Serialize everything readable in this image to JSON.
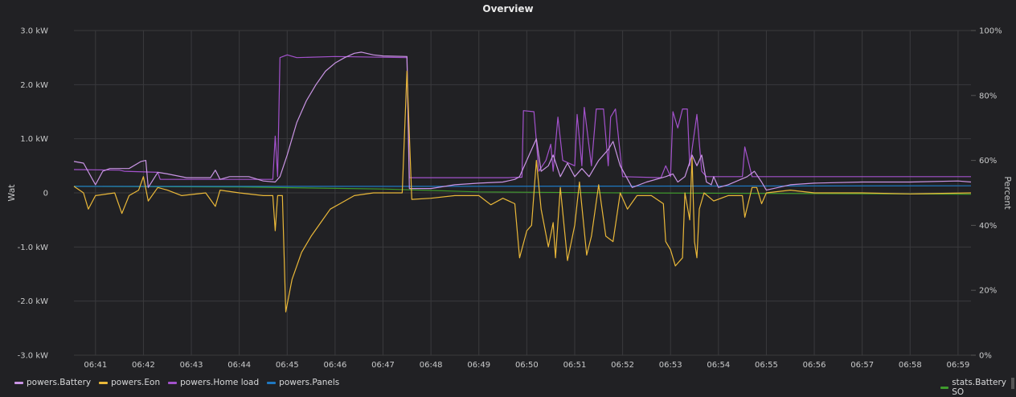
{
  "chart_data": {
    "type": "line",
    "title": "Overview",
    "xlabel": "",
    "ylabel": "Wat",
    "y2label": "Percent",
    "xlim": [
      40.55,
      59.27
    ],
    "ylim": [
      -3,
      3
    ],
    "y2lim": [
      0,
      100
    ],
    "grid": true,
    "legend_placement": "bottom",
    "x_ticks": [
      {
        "v": 41,
        "label": "06:41"
      },
      {
        "v": 42,
        "label": "06:42"
      },
      {
        "v": 43,
        "label": "06:43"
      },
      {
        "v": 44,
        "label": "06:44"
      },
      {
        "v": 45,
        "label": "06:45"
      },
      {
        "v": 46,
        "label": "06:46"
      },
      {
        "v": 47,
        "label": "06:47"
      },
      {
        "v": 48,
        "label": "06:48"
      },
      {
        "v": 49,
        "label": "06:49"
      },
      {
        "v": 50,
        "label": "06:50"
      },
      {
        "v": 51,
        "label": "06:51"
      },
      {
        "v": 52,
        "label": "06:52"
      },
      {
        "v": 53,
        "label": "06:53"
      },
      {
        "v": 54,
        "label": "06:54"
      },
      {
        "v": 55,
        "label": "06:55"
      },
      {
        "v": 56,
        "label": "06:56"
      },
      {
        "v": 57,
        "label": "06:57"
      },
      {
        "v": 58,
        "label": "06:58"
      },
      {
        "v": 59,
        "label": "06:59"
      }
    ],
    "y_ticks": [
      {
        "v": 3,
        "label": "3.0 kW"
      },
      {
        "v": 2,
        "label": "2.0 kW"
      },
      {
        "v": 1,
        "label": "1.0 kW"
      },
      {
        "v": 0,
        "label": "0"
      },
      {
        "v": -1,
        "label": "-1.0 kW"
      },
      {
        "v": -2,
        "label": "-2.0 kW"
      },
      {
        "v": -3,
        "label": "-3.0 kW"
      }
    ],
    "y2_ticks": [
      {
        "v": 100,
        "label": "100%"
      },
      {
        "v": 80,
        "label": "80%"
      },
      {
        "v": 60,
        "label": "60%"
      },
      {
        "v": 40,
        "label": "40%"
      },
      {
        "v": 20,
        "label": "20%"
      },
      {
        "v": 0,
        "label": "0%"
      }
    ],
    "x_unit": "minutes past 06:00",
    "series": [
      {
        "name": "powers.Battery",
        "color": "#ca95e5",
        "axis": "left",
        "points": [
          [
            40.55,
            0.58
          ],
          [
            40.75,
            0.55
          ],
          [
            41.0,
            0.15
          ],
          [
            41.15,
            0.4
          ],
          [
            41.3,
            0.45
          ],
          [
            41.7,
            0.45
          ],
          [
            41.95,
            0.58
          ],
          [
            42.05,
            0.6
          ],
          [
            42.1,
            0.1
          ],
          [
            42.3,
            0.38
          ],
          [
            42.5,
            0.35
          ],
          [
            42.9,
            0.28
          ],
          [
            43.4,
            0.28
          ],
          [
            43.5,
            0.42
          ],
          [
            43.6,
            0.25
          ],
          [
            43.8,
            0.3
          ],
          [
            44.2,
            0.3
          ],
          [
            44.5,
            0.22
          ],
          [
            44.75,
            0.2
          ],
          [
            44.85,
            0.3
          ],
          [
            45.0,
            0.7
          ],
          [
            45.2,
            1.3
          ],
          [
            45.4,
            1.7
          ],
          [
            45.6,
            2.0
          ],
          [
            45.8,
            2.25
          ],
          [
            46.0,
            2.4
          ],
          [
            46.2,
            2.5
          ],
          [
            46.4,
            2.58
          ],
          [
            46.55,
            2.6
          ],
          [
            46.8,
            2.55
          ],
          [
            47.0,
            2.53
          ],
          [
            47.5,
            2.52
          ],
          [
            47.55,
            0.08
          ],
          [
            48.0,
            0.08
          ],
          [
            48.5,
            0.15
          ],
          [
            49.0,
            0.18
          ],
          [
            49.5,
            0.2
          ],
          [
            49.75,
            0.25
          ],
          [
            49.85,
            0.3
          ],
          [
            50.1,
            0.8
          ],
          [
            50.2,
            1.0
          ],
          [
            50.3,
            0.4
          ],
          [
            50.45,
            0.5
          ],
          [
            50.55,
            0.7
          ],
          [
            50.7,
            0.3
          ],
          [
            50.85,
            0.55
          ],
          [
            51.0,
            0.3
          ],
          [
            51.15,
            0.45
          ],
          [
            51.3,
            0.3
          ],
          [
            51.5,
            0.6
          ],
          [
            51.7,
            0.8
          ],
          [
            51.8,
            0.95
          ],
          [
            51.95,
            0.5
          ],
          [
            52.2,
            0.1
          ],
          [
            52.5,
            0.2
          ],
          [
            52.9,
            0.3
          ],
          [
            53.05,
            0.35
          ],
          [
            53.15,
            0.2
          ],
          [
            53.3,
            0.3
          ],
          [
            53.45,
            0.7
          ],
          [
            53.55,
            0.5
          ],
          [
            53.65,
            0.7
          ],
          [
            53.75,
            0.2
          ],
          [
            53.85,
            0.15
          ],
          [
            53.9,
            0.3
          ],
          [
            54.0,
            0.1
          ],
          [
            54.2,
            0.15
          ],
          [
            54.6,
            0.3
          ],
          [
            54.75,
            0.4
          ],
          [
            54.9,
            0.2
          ],
          [
            55.0,
            0.05
          ],
          [
            55.5,
            0.15
          ],
          [
            56.0,
            0.18
          ],
          [
            57.0,
            0.2
          ],
          [
            58.0,
            0.2
          ],
          [
            59.0,
            0.22
          ],
          [
            59.27,
            0.2
          ]
        ]
      },
      {
        "name": "powers.Eon",
        "color": "#eab839",
        "axis": "left",
        "points": [
          [
            40.55,
            0.12
          ],
          [
            40.75,
            0.0
          ],
          [
            40.85,
            -0.3
          ],
          [
            41.0,
            -0.05
          ],
          [
            41.4,
            0.0
          ],
          [
            41.55,
            -0.38
          ],
          [
            41.7,
            -0.05
          ],
          [
            41.9,
            0.05
          ],
          [
            42.0,
            0.3
          ],
          [
            42.1,
            -0.15
          ],
          [
            42.3,
            0.1
          ],
          [
            42.5,
            0.05
          ],
          [
            42.8,
            -0.05
          ],
          [
            43.3,
            0.0
          ],
          [
            43.5,
            -0.25
          ],
          [
            43.6,
            0.05
          ],
          [
            44.0,
            0.0
          ],
          [
            44.5,
            -0.05
          ],
          [
            44.7,
            -0.05
          ],
          [
            44.75,
            -0.7
          ],
          [
            44.8,
            -0.05
          ],
          [
            44.9,
            -0.05
          ],
          [
            44.97,
            -2.2
          ],
          [
            45.1,
            -1.6
          ],
          [
            45.3,
            -1.1
          ],
          [
            45.5,
            -0.8
          ],
          [
            45.7,
            -0.55
          ],
          [
            45.9,
            -0.3
          ],
          [
            46.1,
            -0.2
          ],
          [
            46.4,
            -0.05
          ],
          [
            46.8,
            0.0
          ],
          [
            47.4,
            0.0
          ],
          [
            47.5,
            2.25
          ],
          [
            47.6,
            -0.12
          ],
          [
            48.0,
            -0.1
          ],
          [
            48.5,
            -0.05
          ],
          [
            49.0,
            -0.05
          ],
          [
            49.25,
            -0.22
          ],
          [
            49.5,
            -0.1
          ],
          [
            49.75,
            -0.2
          ],
          [
            49.85,
            -1.2
          ],
          [
            50.0,
            -0.7
          ],
          [
            50.1,
            -0.6
          ],
          [
            50.2,
            0.6
          ],
          [
            50.3,
            -0.3
          ],
          [
            50.45,
            -1.0
          ],
          [
            50.55,
            -0.55
          ],
          [
            50.6,
            -1.2
          ],
          [
            50.7,
            0.1
          ],
          [
            50.85,
            -1.25
          ],
          [
            51.0,
            -0.6
          ],
          [
            51.1,
            0.2
          ],
          [
            51.25,
            -1.15
          ],
          [
            51.35,
            -0.8
          ],
          [
            51.5,
            0.15
          ],
          [
            51.65,
            -0.8
          ],
          [
            51.8,
            -0.9
          ],
          [
            51.95,
            0.0
          ],
          [
            52.1,
            -0.3
          ],
          [
            52.3,
            -0.05
          ],
          [
            52.6,
            -0.05
          ],
          [
            52.85,
            -0.2
          ],
          [
            52.9,
            -0.9
          ],
          [
            53.0,
            -1.05
          ],
          [
            53.1,
            -1.35
          ],
          [
            53.25,
            -1.2
          ],
          [
            53.3,
            0.0
          ],
          [
            53.4,
            -0.5
          ],
          [
            53.45,
            0.65
          ],
          [
            53.5,
            -0.9
          ],
          [
            53.55,
            -1.2
          ],
          [
            53.6,
            -0.3
          ],
          [
            53.7,
            0.0
          ],
          [
            53.9,
            -0.15
          ],
          [
            54.2,
            -0.05
          ],
          [
            54.5,
            -0.05
          ],
          [
            54.55,
            -0.45
          ],
          [
            54.7,
            0.1
          ],
          [
            54.8,
            0.1
          ],
          [
            54.9,
            -0.2
          ],
          [
            55.0,
            0.0
          ],
          [
            55.5,
            0.05
          ],
          [
            56.0,
            0.0
          ],
          [
            57.0,
            0.0
          ],
          [
            58.0,
            -0.02
          ],
          [
            59.27,
            0.0
          ]
        ]
      },
      {
        "name": "powers.Home load",
        "color": "#a352cc",
        "axis": "left",
        "points": [
          [
            40.55,
            0.43
          ],
          [
            41.5,
            0.42
          ],
          [
            41.6,
            0.4
          ],
          [
            42.3,
            0.38
          ],
          [
            42.35,
            0.25
          ],
          [
            44.7,
            0.25
          ],
          [
            44.75,
            1.05
          ],
          [
            44.8,
            0.3
          ],
          [
            44.85,
            2.5
          ],
          [
            45.0,
            2.55
          ],
          [
            45.2,
            2.5
          ],
          [
            46.0,
            2.52
          ],
          [
            47.5,
            2.5
          ],
          [
            47.55,
            0.28
          ],
          [
            49.6,
            0.28
          ],
          [
            49.9,
            0.29
          ],
          [
            49.93,
            1.52
          ],
          [
            50.15,
            1.5
          ],
          [
            50.25,
            0.4
          ],
          [
            50.4,
            0.6
          ],
          [
            50.5,
            0.9
          ],
          [
            50.55,
            0.4
          ],
          [
            50.65,
            1.4
          ],
          [
            50.75,
            0.6
          ],
          [
            51.0,
            0.5
          ],
          [
            51.05,
            1.45
          ],
          [
            51.15,
            0.5
          ],
          [
            51.2,
            1.58
          ],
          [
            51.35,
            0.5
          ],
          [
            51.45,
            1.55
          ],
          [
            51.6,
            1.55
          ],
          [
            51.7,
            0.5
          ],
          [
            51.75,
            1.4
          ],
          [
            51.85,
            1.55
          ],
          [
            52.0,
            0.3
          ],
          [
            52.8,
            0.28
          ],
          [
            52.9,
            0.5
          ],
          [
            53.0,
            0.3
          ],
          [
            53.05,
            1.5
          ],
          [
            53.15,
            1.2
          ],
          [
            53.25,
            1.55
          ],
          [
            53.35,
            1.55
          ],
          [
            53.4,
            0.5
          ],
          [
            53.55,
            1.45
          ],
          [
            53.65,
            0.4
          ],
          [
            53.75,
            0.3
          ],
          [
            54.5,
            0.3
          ],
          [
            54.55,
            0.85
          ],
          [
            54.7,
            0.3
          ],
          [
            55.0,
            0.3
          ],
          [
            59.27,
            0.3
          ]
        ]
      },
      {
        "name": "powers.Panels",
        "color": "#1f78c1",
        "axis": "left",
        "points": [
          [
            40.55,
            0.12
          ],
          [
            47.0,
            0.12
          ],
          [
            59.27,
            0.13
          ]
        ]
      },
      {
        "name": "stats.Battery SOC",
        "color": "#3f9b2c",
        "axis": "right",
        "points": [
          [
            40.55,
            52.0
          ],
          [
            44.0,
            51.8
          ],
          [
            47.0,
            51.2
          ],
          [
            49.0,
            50.3
          ],
          [
            52.0,
            50.0
          ],
          [
            59.27,
            49.6
          ]
        ]
      }
    ]
  },
  "legend": {
    "left": [
      "powers.Battery",
      "powers.Eon",
      "powers.Home load",
      "powers.Panels"
    ],
    "right_visible_text": "stats.Battery SO"
  }
}
